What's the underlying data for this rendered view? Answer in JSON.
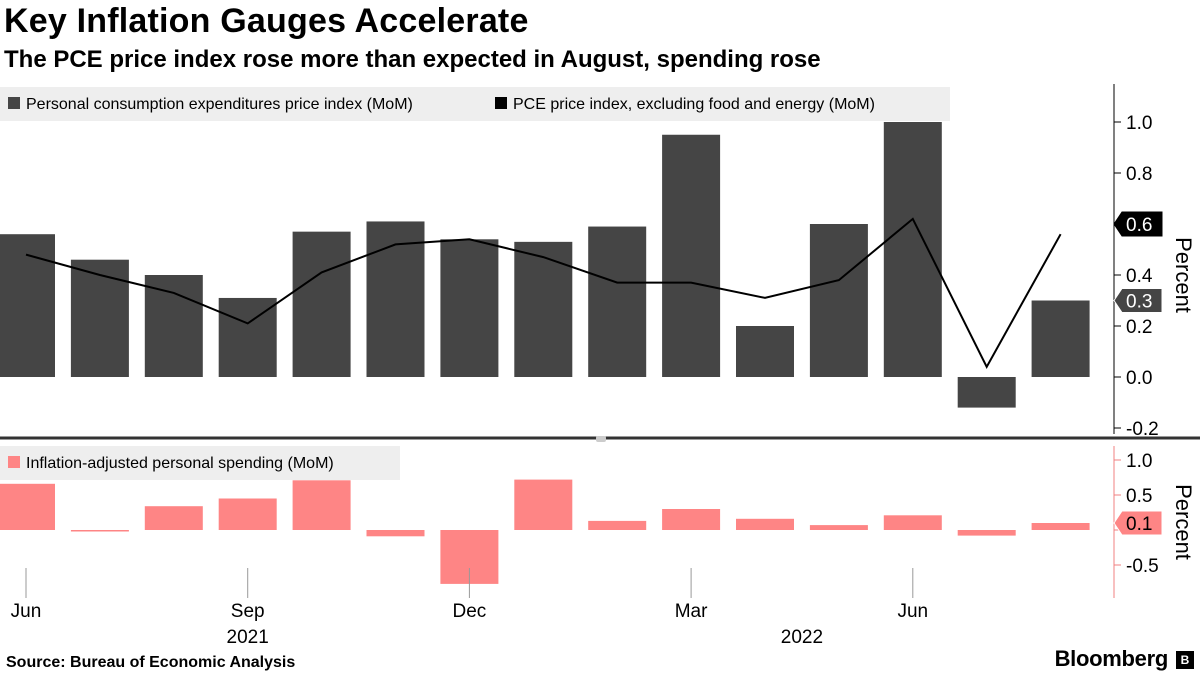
{
  "title": "Key Inflation Gauges Accelerate",
  "subtitle": "The PCE price index rose more than expected in August, spending rose",
  "source": "Source: Bureau of Economic Analysis",
  "brand": "Bloomberg",
  "colors": {
    "bar_dark": "#454545",
    "line": "#000000",
    "bar_pink": "#fe8585",
    "legend_bg": "#eeeeee",
    "divider": "#333333",
    "axis_pink": "#f08080"
  },
  "x_axis": {
    "month_labels": [
      "Jun",
      "Sep",
      "Dec",
      "Mar",
      "Jun"
    ],
    "year_labels": [
      "2021",
      "2022"
    ]
  },
  "chart_data": [
    {
      "type": "bar",
      "title": "Key Inflation Gauges Accelerate",
      "subtitle": "The PCE price index rose more than expected in August, spending rose",
      "categories": [
        "Jun 2021",
        "Jul 2021",
        "Aug 2021",
        "Sep 2021",
        "Oct 2021",
        "Nov 2021",
        "Dec 2021",
        "Jan 2022",
        "Feb 2022",
        "Mar 2022",
        "Apr 2022",
        "May 2022",
        "Jun 2022",
        "Jul 2022",
        "Aug 2022"
      ],
      "series": [
        {
          "name": "Personal consumption expenditures price index (MoM)",
          "type": "bar",
          "values": [
            0.56,
            0.46,
            0.4,
            0.31,
            0.57,
            0.61,
            0.54,
            0.53,
            0.59,
            0.95,
            0.2,
            0.6,
            1.0,
            -0.12,
            0.3
          ]
        },
        {
          "name": "PCE price index, excluding food and energy (MoM)",
          "type": "line",
          "values": [
            0.48,
            0.4,
            0.33,
            0.21,
            0.41,
            0.52,
            0.54,
            0.47,
            0.37,
            0.37,
            0.31,
            0.38,
            0.62,
            0.04,
            0.56
          ]
        }
      ],
      "ylabel": "Percent",
      "ylim": [
        -0.22,
        1.1
      ],
      "yticks": [
        1.0,
        0.8,
        0.6,
        0.4,
        0.2,
        0.0,
        -0.2
      ],
      "ytick_labels": [
        "1.0",
        "0.8",
        "0.6",
        "0.4",
        "0.2",
        "0.0",
        "-0.2"
      ],
      "end_labels": [
        {
          "text": "0.6",
          "value": 0.6,
          "series": "PCE price index, excluding food and energy (MoM)"
        },
        {
          "text": "0.3",
          "value": 0.3,
          "series": "Personal consumption expenditures price index (MoM)"
        }
      ],
      "legend_position": "top-left",
      "grid": false
    },
    {
      "type": "bar",
      "categories": [
        "Jun 2021",
        "Jul 2021",
        "Aug 2021",
        "Sep 2021",
        "Oct 2021",
        "Nov 2021",
        "Dec 2021",
        "Jan 2022",
        "Feb 2022",
        "Mar 2022",
        "Apr 2022",
        "May 2022",
        "Jun 2022",
        "Jul 2022",
        "Aug 2022"
      ],
      "series": [
        {
          "name": "Inflation-adjusted personal spending (MoM)",
          "type": "bar",
          "values": [
            0.66,
            -0.02,
            0.34,
            0.45,
            0.71,
            -0.09,
            -0.77,
            0.72,
            0.13,
            0.3,
            0.16,
            0.07,
            0.21,
            -0.08,
            0.1
          ]
        }
      ],
      "ylabel": "Percent",
      "ylim": [
        -0.7,
        1.1
      ],
      "yticks": [
        1.0,
        0.5,
        0.0,
        -0.5
      ],
      "ytick_labels": [
        "1.0",
        "0.5",
        "",
        "-0.5"
      ],
      "end_labels": [
        {
          "text": "0.1",
          "value": 0.1,
          "series": "Inflation-adjusted personal spending (MoM)"
        }
      ],
      "legend_position": "top-left",
      "grid": false
    }
  ]
}
